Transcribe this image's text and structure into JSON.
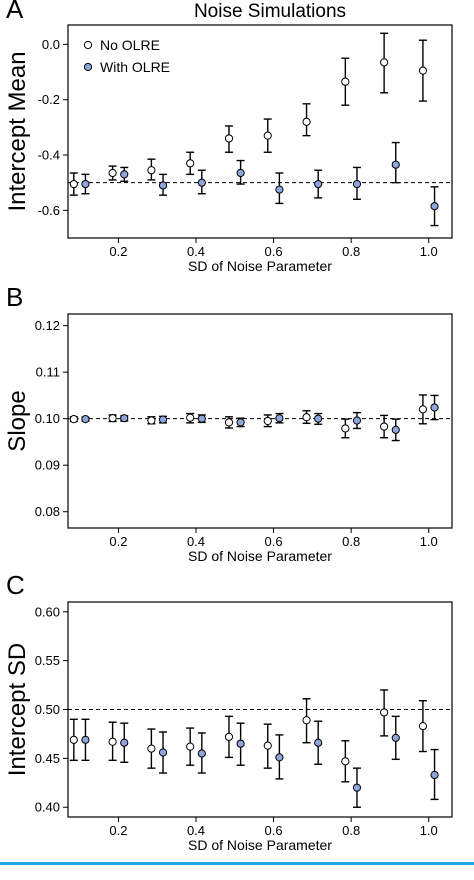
{
  "figure": {
    "title": "Noise Simulations",
    "legend": [
      {
        "name": "No OLRE",
        "fill": "#ffffff"
      },
      {
        "name": "With OLRE",
        "fill": "#8ea6dc"
      }
    ],
    "caption_fragment": ""
  },
  "chart_data": [
    {
      "type": "scatter",
      "panel": "A",
      "ylabel": "Intercept Mean",
      "xlabel": "SD of Noise Parameter",
      "xlim": [
        0.07,
        1.06
      ],
      "ylim": [
        -0.7,
        0.07
      ],
      "xticks": [
        0.2,
        0.4,
        0.6,
        0.8,
        1.0
      ],
      "xtick_labels": [
        "0.2",
        "0.4",
        "0.6",
        "0.8",
        "1.0"
      ],
      "yticks": [
        0.0,
        -0.2,
        -0.4,
        -0.6
      ],
      "ytick_labels": [
        "0.0",
        "-0.2",
        "-0.4",
        "-0.6"
      ],
      "reference_line": -0.5,
      "x": [
        0.1,
        0.2,
        0.3,
        0.4,
        0.5,
        0.6,
        0.7,
        0.8,
        0.9,
        1.0
      ],
      "error_bars": true,
      "legend_position": "top-left",
      "series": [
        {
          "name": "No OLRE",
          "fill": "#ffffff",
          "values": [
            -0.505,
            -0.465,
            -0.455,
            -0.43,
            -0.34,
            -0.33,
            -0.28,
            -0.135,
            -0.065,
            -0.095
          ],
          "lower": [
            -0.545,
            -0.49,
            -0.49,
            -0.47,
            -0.39,
            -0.39,
            -0.33,
            -0.22,
            -0.175,
            -0.205
          ],
          "upper": [
            -0.465,
            -0.44,
            -0.415,
            -0.39,
            -0.295,
            -0.27,
            -0.215,
            -0.05,
            0.04,
            0.015
          ]
        },
        {
          "name": "With OLRE",
          "fill": "#8ea6dc",
          "values": [
            -0.505,
            -0.47,
            -0.51,
            -0.5,
            -0.465,
            -0.525,
            -0.505,
            -0.505,
            -0.435,
            -0.585
          ],
          "lower": [
            -0.54,
            -0.495,
            -0.545,
            -0.54,
            -0.505,
            -0.575,
            -0.555,
            -0.56,
            -0.5,
            -0.655
          ],
          "upper": [
            -0.47,
            -0.445,
            -0.47,
            -0.455,
            -0.42,
            -0.465,
            -0.455,
            -0.445,
            -0.355,
            -0.515
          ]
        }
      ]
    },
    {
      "type": "scatter",
      "panel": "B",
      "ylabel": "Slope",
      "xlabel": "SD of Noise Parameter",
      "xlim": [
        0.07,
        1.06
      ],
      "ylim": [
        0.0765,
        0.1225
      ],
      "xticks": [
        0.2,
        0.4,
        0.6,
        0.8,
        1.0
      ],
      "xtick_labels": [
        "0.2",
        "0.4",
        "0.6",
        "0.8",
        "1.0"
      ],
      "yticks": [
        0.08,
        0.09,
        0.1,
        0.11,
        0.12
      ],
      "ytick_labels": [
        "0.08",
        "0.09",
        "0.10",
        "0.11",
        "0.12"
      ],
      "reference_line": 0.1,
      "x": [
        0.1,
        0.2,
        0.3,
        0.4,
        0.5,
        0.6,
        0.7,
        0.8,
        0.9,
        1.0
      ],
      "error_bars": true,
      "series": [
        {
          "name": "No OLRE",
          "fill": "#ffffff",
          "values": [
            0.0999,
            0.1001,
            0.0996,
            0.1002,
            0.0992,
            0.0995,
            0.1003,
            0.0979,
            0.0983,
            0.102
          ],
          "lower": [
            0.0994,
            0.0994,
            0.0989,
            0.0991,
            0.098,
            0.0983,
            0.099,
            0.0959,
            0.0959,
            0.0989
          ],
          "upper": [
            0.1004,
            0.1008,
            0.1004,
            0.1011,
            0.1004,
            0.1008,
            0.1017,
            0.0999,
            0.1007,
            0.1051
          ]
        },
        {
          "name": "With OLRE",
          "fill": "#8ea6dc",
          "values": [
            0.0999,
            0.1001,
            0.0998,
            0.1,
            0.0992,
            0.1001,
            0.1,
            0.0996,
            0.0976,
            0.1024
          ],
          "lower": [
            0.0995,
            0.0995,
            0.0991,
            0.0992,
            0.0983,
            0.0991,
            0.0988,
            0.0979,
            0.0953,
            0.0998
          ],
          "upper": [
            0.1003,
            0.1006,
            0.1005,
            0.1008,
            0.1001,
            0.1011,
            0.1011,
            0.1013,
            0.0999,
            0.105
          ]
        }
      ]
    },
    {
      "type": "scatter",
      "panel": "C",
      "ylabel": "Intercept SD",
      "xlabel": "SD of Noise Parameter",
      "xlim": [
        0.07,
        1.06
      ],
      "ylim": [
        0.39,
        0.61
      ],
      "xticks": [
        0.2,
        0.4,
        0.6,
        0.8,
        1.0
      ],
      "xtick_labels": [
        "0.2",
        "0.4",
        "0.6",
        "0.8",
        "1.0"
      ],
      "yticks": [
        0.4,
        0.45,
        0.5,
        0.55,
        0.6
      ],
      "ytick_labels": [
        "0.40",
        "0.45",
        "0.50",
        "0.55",
        "0.60"
      ],
      "reference_line": 0.5,
      "x": [
        0.1,
        0.2,
        0.3,
        0.4,
        0.5,
        0.6,
        0.7,
        0.8,
        0.9,
        1.0
      ],
      "error_bars": true,
      "series": [
        {
          "name": "No OLRE",
          "fill": "#ffffff",
          "values": [
            0.469,
            0.467,
            0.46,
            0.462,
            0.472,
            0.463,
            0.489,
            0.447,
            0.497,
            0.483
          ],
          "lower": [
            0.448,
            0.448,
            0.44,
            0.443,
            0.451,
            0.44,
            0.466,
            0.426,
            0.473,
            0.457
          ],
          "upper": [
            0.49,
            0.487,
            0.48,
            0.481,
            0.493,
            0.485,
            0.511,
            0.468,
            0.52,
            0.509
          ]
        },
        {
          "name": "With OLRE",
          "fill": "#8ea6dc",
          "values": [
            0.469,
            0.466,
            0.456,
            0.455,
            0.465,
            0.451,
            0.466,
            0.42,
            0.471,
            0.433
          ],
          "lower": [
            0.448,
            0.446,
            0.435,
            0.435,
            0.443,
            0.429,
            0.444,
            0.4,
            0.449,
            0.408
          ],
          "upper": [
            0.49,
            0.486,
            0.477,
            0.476,
            0.486,
            0.474,
            0.488,
            0.44,
            0.493,
            0.459
          ]
        }
      ]
    }
  ]
}
